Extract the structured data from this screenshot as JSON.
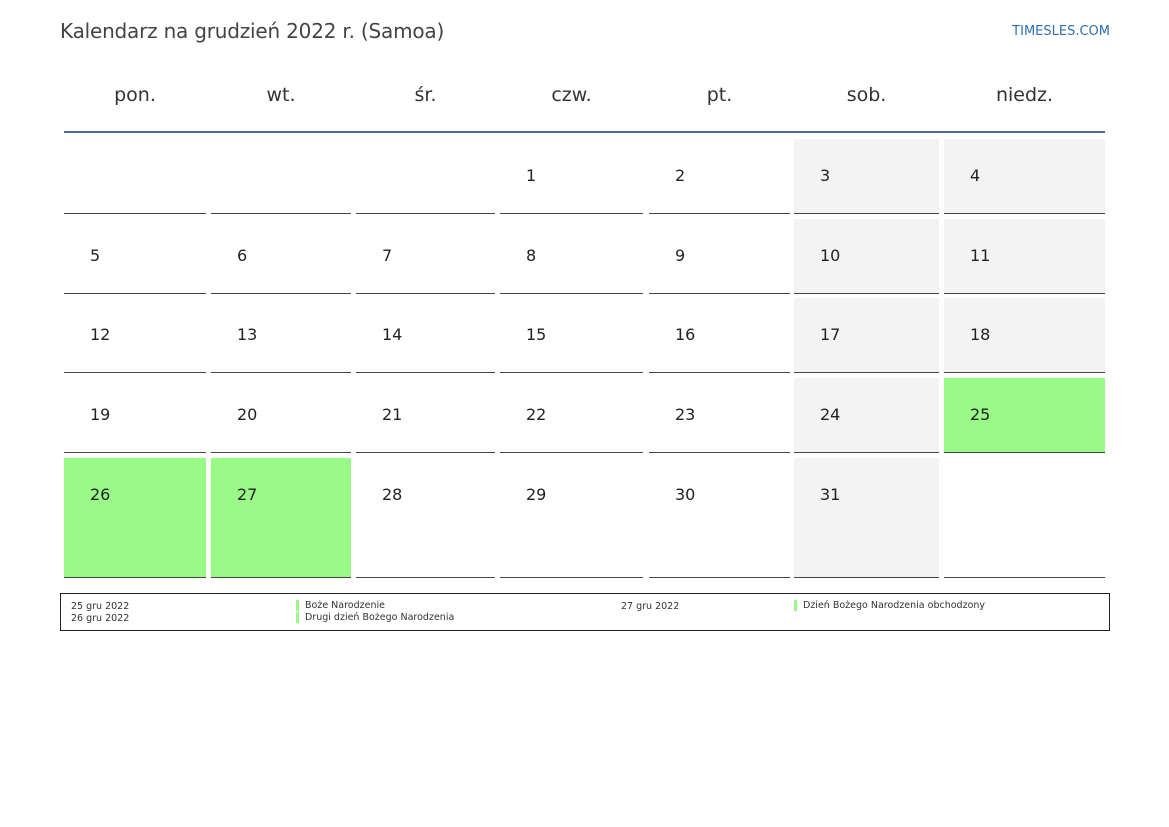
{
  "header": {
    "title": "Kalendarz na grudzień 2022 r. (Samoa)",
    "brand": "TIMESLES.COM"
  },
  "weekdays": [
    "pon.",
    "wt.",
    "śr.",
    "czw.",
    "pt.",
    "sob.",
    "niedz."
  ],
  "colors": {
    "holiday": "#99fa87",
    "weekend": "#f3f3f3",
    "header_rule": "#4c6a92",
    "brand": "#2f6fb0"
  },
  "weeks": [
    [
      {
        "day": ""
      },
      {
        "day": ""
      },
      {
        "day": ""
      },
      {
        "day": "1"
      },
      {
        "day": "2"
      },
      {
        "day": "3",
        "type": "weekend"
      },
      {
        "day": "4",
        "type": "weekend"
      }
    ],
    [
      {
        "day": "5"
      },
      {
        "day": "6"
      },
      {
        "day": "7"
      },
      {
        "day": "8"
      },
      {
        "day": "9"
      },
      {
        "day": "10",
        "type": "weekend"
      },
      {
        "day": "11",
        "type": "weekend"
      }
    ],
    [
      {
        "day": "12"
      },
      {
        "day": "13"
      },
      {
        "day": "14"
      },
      {
        "day": "15"
      },
      {
        "day": "16"
      },
      {
        "day": "17",
        "type": "weekend"
      },
      {
        "day": "18",
        "type": "weekend"
      }
    ],
    [
      {
        "day": "19"
      },
      {
        "day": "20"
      },
      {
        "day": "21"
      },
      {
        "day": "22"
      },
      {
        "day": "23"
      },
      {
        "day": "24",
        "type": "weekend"
      },
      {
        "day": "25",
        "type": "holiday"
      }
    ],
    [
      {
        "day": "26",
        "type": "holiday"
      },
      {
        "day": "27",
        "type": "holiday"
      },
      {
        "day": "28"
      },
      {
        "day": "29"
      },
      {
        "day": "30"
      },
      {
        "day": "31",
        "type": "weekend"
      },
      {
        "day": ""
      }
    ]
  ],
  "legend": {
    "left": [
      {
        "date": "25 gru 2022",
        "name": "Boże Narodzenie"
      },
      {
        "date": "26 gru 2022",
        "name": "Drugi dzień Bożego Narodzenia"
      }
    ],
    "right": [
      {
        "date": "27 gru 2022",
        "name": "Dzień Bożego Narodzenia obchodzony"
      }
    ]
  }
}
